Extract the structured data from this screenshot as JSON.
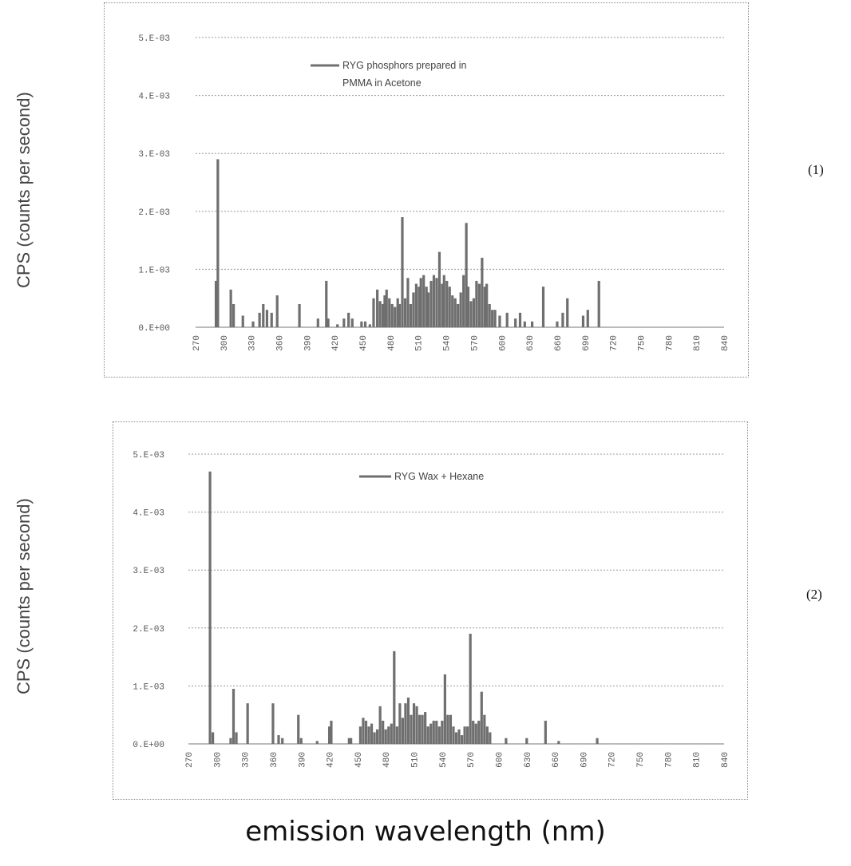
{
  "page": {
    "xlabel": "emission wavelength (nm)"
  },
  "panels": [
    {
      "ylabel": "CPS (counts per second)",
      "number": "(1)"
    },
    {
      "ylabel": "CPS (counts per second)",
      "number": "(2)"
    }
  ],
  "colors": {
    "bar": "#6f6f6f",
    "grid": "#9a9a9a",
    "frame": "#8a8a8a"
  },
  "chart_data": [
    {
      "type": "bar",
      "title": "",
      "xlabel": "emission wavelength (nm)",
      "ylabel": "CPS (counts per second)",
      "x_ticks": [
        "270",
        "300",
        "330",
        "360",
        "390",
        "420",
        "450",
        "480",
        "510",
        "540",
        "570",
        "600",
        "630",
        "660",
        "690",
        "720",
        "750",
        "780",
        "810",
        "840"
      ],
      "y_ticks": [
        "0.E+00",
        "1.E-03",
        "2.E-03",
        "3.E-03",
        "4.E-03",
        "5.E-03"
      ],
      "xlim": [
        270,
        840
      ],
      "ylim": [
        0,
        0.005
      ],
      "grid": true,
      "legend": {
        "placement": "top-center",
        "lines": [
          "RYG phosphors prepared in",
          "PMMA in Acetone"
        ]
      },
      "series": [
        {
          "name": "RYG phosphors prepared in PMMA in Acetone",
          "points": [
            [
              292,
              0.0008
            ],
            [
              294,
              0.0029
            ],
            [
              308,
              0.00065
            ],
            [
              311,
              0.0004
            ],
            [
              321,
              0.0002
            ],
            [
              332,
              0.0001
            ],
            [
              339,
              0.00025
            ],
            [
              343,
              0.0004
            ],
            [
              347,
              0.0003
            ],
            [
              352,
              0.00025
            ],
            [
              358,
              0.00055
            ],
            [
              382,
              0.0004
            ],
            [
              402,
              0.00015
            ],
            [
              411,
              0.0008
            ],
            [
              413,
              0.00015
            ],
            [
              423,
              5e-05
            ],
            [
              430,
              0.00015
            ],
            [
              435,
              0.00025
            ],
            [
              439,
              0.00015
            ],
            [
              449,
              0.0001
            ],
            [
              453,
              0.0001
            ],
            [
              458,
              5e-05
            ],
            [
              462,
              0.0005
            ],
            [
              466,
              0.00065
            ],
            [
              469,
              0.00045
            ],
            [
              472,
              0.0004
            ],
            [
              474,
              0.00055
            ],
            [
              476,
              0.00065
            ],
            [
              479,
              0.0005
            ],
            [
              482,
              0.0004
            ],
            [
              485,
              0.00035
            ],
            [
              488,
              0.0005
            ],
            [
              490,
              0.0004
            ],
            [
              493,
              0.0019
            ],
            [
              496,
              0.0005
            ],
            [
              499,
              0.00085
            ],
            [
              502,
              0.0004
            ],
            [
              505,
              0.0006
            ],
            [
              508,
              0.00075
            ],
            [
              511,
              0.0007
            ],
            [
              513,
              0.00085
            ],
            [
              516,
              0.0009
            ],
            [
              519,
              0.0007
            ],
            [
              521,
              0.0006
            ],
            [
              524,
              0.0008
            ],
            [
              527,
              0.0009
            ],
            [
              530,
              0.00085
            ],
            [
              533,
              0.0013
            ],
            [
              536,
              0.00075
            ],
            [
              538,
              0.0009
            ],
            [
              541,
              0.0008
            ],
            [
              544,
              0.0007
            ],
            [
              547,
              0.00055
            ],
            [
              550,
              0.0005
            ],
            [
              553,
              0.0004
            ],
            [
              556,
              0.0006
            ],
            [
              559,
              0.0009
            ],
            [
              562,
              0.0018
            ],
            [
              564,
              0.0007
            ],
            [
              567,
              0.00045
            ],
            [
              570,
              0.0005
            ],
            [
              573,
              0.0008
            ],
            [
              576,
              0.00075
            ],
            [
              579,
              0.0012
            ],
            [
              582,
              0.0007
            ],
            [
              584,
              0.00075
            ],
            [
              587,
              0.0004
            ],
            [
              590,
              0.0003
            ],
            [
              593,
              0.0003
            ],
            [
              598,
              0.0002
            ],
            [
              606,
              0.00025
            ],
            [
              615,
              0.00015
            ],
            [
              620,
              0.00025
            ],
            [
              625,
              0.0001
            ],
            [
              633,
              0.0001
            ],
            [
              645,
              0.0007
            ],
            [
              660,
              0.0001
            ],
            [
              666,
              0.00025
            ],
            [
              671,
              0.0005
            ],
            [
              688,
              0.0002
            ],
            [
              693,
              0.0003
            ],
            [
              705,
              0.0008
            ]
          ]
        }
      ]
    },
    {
      "type": "bar",
      "title": "",
      "xlabel": "emission wavelength (nm)",
      "ylabel": "CPS (counts per second)",
      "x_ticks": [
        "270",
        "300",
        "330",
        "360",
        "390",
        "420",
        "450",
        "480",
        "510",
        "540",
        "570",
        "600",
        "630",
        "660",
        "690",
        "720",
        "750",
        "780",
        "810",
        "840"
      ],
      "y_ticks": [
        "0.E+00",
        "1.E-03",
        "2.E-03",
        "3.E-03",
        "4.E-03",
        "5.E-03"
      ],
      "xlim": [
        270,
        840
      ],
      "ylim": [
        0,
        0.005
      ],
      "grid": true,
      "legend": {
        "placement": "top-center",
        "lines": [
          "RYG Wax + Hexane"
        ]
      },
      "series": [
        {
          "name": "RYG Wax + Hexane",
          "points": [
            [
              293,
              0.0047
            ],
            [
              296,
              0.0002
            ],
            [
              315,
              0.0001
            ],
            [
              318,
              0.00095
            ],
            [
              321,
              0.0002
            ],
            [
              333,
              0.0007
            ],
            [
              360,
              0.0007
            ],
            [
              366,
              0.00015
            ],
            [
              370,
              0.0001
            ],
            [
              387,
              0.0005
            ],
            [
              390,
              0.0001
            ],
            [
              407,
              5e-05
            ],
            [
              420,
              0.0003
            ],
            [
              422,
              0.0004
            ],
            [
              441,
              0.0001
            ],
            [
              443,
              0.0001
            ],
            [
              453,
              0.0003
            ],
            [
              456,
              0.00045
            ],
            [
              459,
              0.0004
            ],
            [
              462,
              0.0003
            ],
            [
              465,
              0.00035
            ],
            [
              468,
              0.0002
            ],
            [
              471,
              0.00025
            ],
            [
              474,
              0.00065
            ],
            [
              477,
              0.0004
            ],
            [
              480,
              0.00025
            ],
            [
              483,
              0.0003
            ],
            [
              486,
              0.00035
            ],
            [
              489,
              0.0016
            ],
            [
              492,
              0.0003
            ],
            [
              495,
              0.0007
            ],
            [
              498,
              0.00045
            ],
            [
              501,
              0.0007
            ],
            [
              504,
              0.0008
            ],
            [
              507,
              0.0005
            ],
            [
              510,
              0.0007
            ],
            [
              513,
              0.00065
            ],
            [
              516,
              0.0005
            ],
            [
              519,
              0.0005
            ],
            [
              522,
              0.00055
            ],
            [
              525,
              0.0003
            ],
            [
              528,
              0.00035
            ],
            [
              531,
              0.0004
            ],
            [
              534,
              0.0004
            ],
            [
              537,
              0.0003
            ],
            [
              540,
              0.0004
            ],
            [
              543,
              0.0012
            ],
            [
              546,
              0.0005
            ],
            [
              549,
              0.0005
            ],
            [
              552,
              0.0003
            ],
            [
              555,
              0.0002
            ],
            [
              558,
              0.00025
            ],
            [
              561,
              0.00015
            ],
            [
              564,
              0.0003
            ],
            [
              567,
              0.0003
            ],
            [
              570,
              0.0019
            ],
            [
              573,
              0.0004
            ],
            [
              576,
              0.00035
            ],
            [
              579,
              0.0004
            ],
            [
              582,
              0.0009
            ],
            [
              585,
              0.0005
            ],
            [
              588,
              0.0003
            ],
            [
              591,
              0.0002
            ],
            [
              608,
              0.0001
            ],
            [
              630,
              0.0001
            ],
            [
              650,
              0.0004
            ],
            [
              664,
              5e-05
            ],
            [
              705,
              0.0001
            ]
          ]
        }
      ]
    }
  ]
}
